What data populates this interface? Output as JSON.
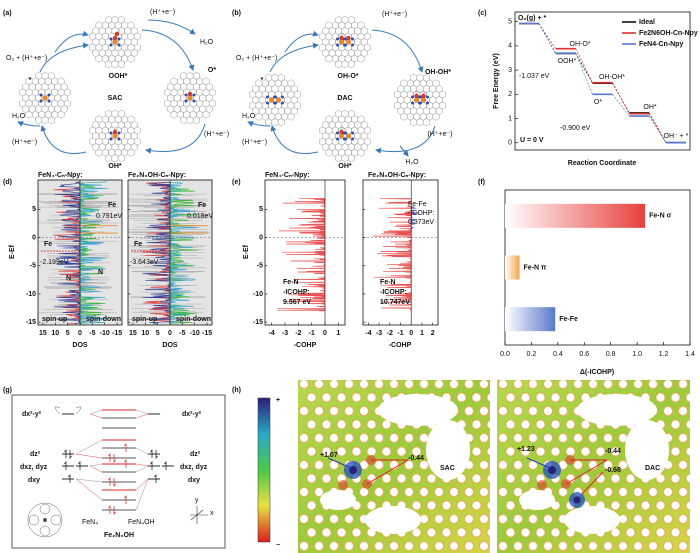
{
  "panel_labels": [
    "(a)",
    "(b)",
    "(c)",
    "(d)",
    "(e)",
    "(f)",
    "(g)",
    "(h)"
  ],
  "a": {
    "reactant": "O₂ + (H⁺+e⁻)",
    "center": "SAC",
    "states": [
      "OOH*",
      "O*",
      "OH*",
      "*"
    ],
    "steps": [
      "(H⁺+e⁻)",
      "(H⁺+e⁻)",
      "(H⁺+e⁻)"
    ],
    "products": [
      "H₂O",
      "H₂O"
    ]
  },
  "b": {
    "reactant": "O₂ + (H⁺+e⁻)",
    "center": "DAC",
    "states": [
      "OH-O*",
      "OH-OH*",
      "OH*",
      "*"
    ],
    "steps": [
      "(H⁺+e⁻)",
      "(H⁺+e⁻)",
      "(H⁺+e⁻)"
    ],
    "products": [
      "H₂O",
      "H₂O"
    ]
  },
  "chart_data": [
    {
      "type": "step",
      "ylabel": "Free Energy (eV)",
      "xlabel": "Reaction Coordinate",
      "categories": [
        null,
        null,
        null,
        null,
        null
      ],
      "ylim": [
        -0.3,
        5.4
      ],
      "yticks": [
        0,
        1,
        2,
        3,
        4,
        5
      ],
      "series": [
        {
          "name": "Ideal",
          "color": "#111111",
          "values": [
            4.92,
            3.69,
            2.46,
            1.23,
            0
          ]
        },
        {
          "name": "Fe2N6OH-Cn-Npy",
          "color": "#e03030",
          "values": [
            4.92,
            3.883,
            2.48,
            1.2,
            0
          ]
        },
        {
          "name": "FeN4-Cn-Npy",
          "color": "#5577cc",
          "values": [
            4.92,
            3.7,
            2.0,
            1.1,
            0
          ]
        }
      ],
      "annotations": [
        "O₂(g) + *",
        "OH-O*",
        "OOH*",
        "OH-OH*",
        "O*",
        "OH*",
        "OH⁻ + *",
        "-1.037 eV",
        "-0.900 eV",
        "U = 0 V"
      ]
    },
    {
      "type": "barh",
      "xlabel": "Δ(-ICOHP)",
      "categories": [
        "Fe-N σ",
        "Fe-N π",
        "Fe-Fe"
      ],
      "values": [
        1.06,
        0.11,
        0.38
      ],
      "colors": [
        "#e8403c",
        "#f2a64a",
        "#5a78c8"
      ],
      "xlim": [
        0,
        1.4
      ],
      "xticks": [
        {
          "value": 0,
          "label": "0.0"
        },
        {
          "value": 0.2,
          "label": "0.2"
        },
        {
          "value": 0.4,
          "label": "0.4"
        },
        {
          "value": 0.6,
          "label": "0.6"
        },
        {
          "value": 0.8,
          "label": "0.8"
        },
        {
          "value": 1,
          "label": "1.0"
        },
        {
          "value": 1.2,
          "label": "1.2"
        },
        {
          "value": 1.4,
          "label": "1.4"
        }
      ]
    }
  ],
  "d": {
    "titles": [
      "FeN₄-Cₙ-Npy:",
      "Fe₂N₆OH-Cₙ-Npy:"
    ],
    "ylabel": "E-Ef",
    "xlabel": "DOS",
    "ylim": [
      -15.5,
      10.2
    ],
    "yticks": [
      5,
      0,
      -5,
      -10,
      -15
    ],
    "xlim": [
      17,
      -17
    ],
    "xticks": [
      15,
      10,
      5,
      0,
      -5,
      -10,
      -15
    ],
    "left_labels": [
      "Fe",
      "-2.199eV",
      "Fe",
      "0.791eV",
      "N",
      "N",
      "spin-up",
      "spin-down"
    ],
    "right_labels": [
      "Fe",
      "-3.643eV",
      "Fe",
      "0.018eV",
      "spin-up",
      "spin-down"
    ]
  },
  "e": {
    "titles": [
      "FeN₄-Cₙ-Npy:",
      "Fe₂N₆OH-Cₙ-Npy:"
    ],
    "ylabel": "E-Ef",
    "xlabel": "-COHP",
    "ylim": [
      -15.5,
      10.2
    ],
    "yticks": [
      5,
      0,
      -5,
      -10,
      -15
    ],
    "left_xlim": [
      -4.5,
      1.5
    ],
    "left_xticks": [
      -4,
      -3,
      -2,
      -1,
      0,
      1
    ],
    "right_xlim": [
      -4.5,
      2.5
    ],
    "right_xticks": [
      -4,
      -3,
      -2,
      -1,
      0,
      1,
      2
    ],
    "left_note": [
      "Fe-N",
      "-ICOHP:",
      "9.567 eV"
    ],
    "right_note": [
      "Fe-N",
      "-ICOHP:",
      "10.747eV"
    ],
    "fefe_note": [
      "Fe-Fe",
      "-ICOHP:",
      "0.373eV"
    ]
  },
  "g": {
    "orbitals_left": [
      "dx²-y²",
      "dz²",
      "dxz, dyz",
      "dxy"
    ],
    "orbitals_right": [
      "dx²-y²",
      "dz²",
      "dxz, dyz",
      "dxy"
    ],
    "species": [
      "FeN₄",
      "FeN₄OH",
      "Fe₂N₆OH"
    ],
    "axes": [
      "y",
      "x"
    ]
  },
  "h": {
    "colorbar": [
      "+",
      "−"
    ],
    "sac": [
      "+1.07",
      "-0.44",
      "SAC"
    ],
    "dac": [
      "+1.23",
      "-0.44",
      "-0.68",
      "DAC"
    ]
  }
}
